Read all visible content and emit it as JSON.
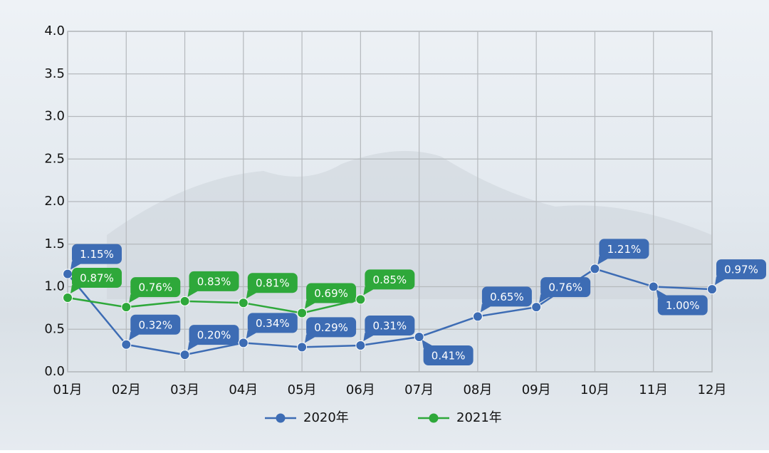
{
  "chart_data": {
    "type": "line",
    "categories": [
      "01月",
      "02月",
      "03月",
      "04月",
      "05月",
      "06月",
      "07月",
      "08月",
      "09月",
      "10月",
      "11月",
      "12月"
    ],
    "series": [
      {
        "name": "2020年",
        "color": "#3d6cb4",
        "values": [
          1.15,
          0.32,
          0.2,
          0.34,
          0.29,
          0.31,
          0.41,
          0.65,
          0.76,
          1.21,
          1.0,
          0.97
        ],
        "value_labels": [
          "1.15%",
          "0.32%",
          "0.20%",
          "0.34%",
          "0.29%",
          "0.31%",
          "0.41%",
          "0.65%",
          "0.76%",
          "1.21%",
          "1.00%",
          "0.97%"
        ]
      },
      {
        "name": "2021年",
        "color": "#2ea83a",
        "values": [
          0.87,
          0.76,
          0.83,
          0.81,
          0.69,
          0.85,
          null,
          null,
          null,
          null,
          null,
          null
        ],
        "value_labels": [
          "0.87%",
          "0.76%",
          "0.83%",
          "0.81%",
          "0.69%",
          "0.85%",
          null,
          null,
          null,
          null,
          null,
          null
        ]
      }
    ],
    "ylim": [
      0,
      4
    ],
    "yticks": [
      {
        "value": 0,
        "label": "0.0"
      },
      0.5,
      {
        "value": 1,
        "label": "1.0"
      },
      1.5,
      {
        "value": 2,
        "label": "2.0"
      },
      2.5,
      {
        "value": 3,
        "label": "3.0"
      },
      3.5,
      {
        "value": 4,
        "label": "4.0"
      }
    ],
    "grid": true,
    "legend": "bottom"
  }
}
